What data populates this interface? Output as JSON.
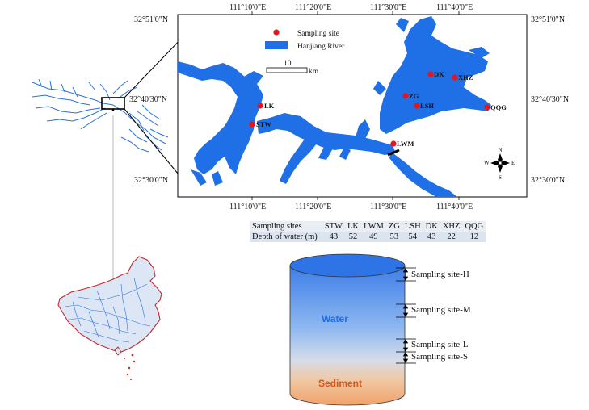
{
  "map": {
    "top_lon_labels": [
      "111°10'0\"E",
      "111°20'0\"E",
      "111°30'0\"E",
      "111°40'0\"E"
    ],
    "bottom_lon_labels": [
      "111°10'0\"E",
      "111°20'0\"E",
      "111°30'0\"E",
      "111°40'0\"E"
    ],
    "left_lat_labels": [
      "32°51'0\"N",
      "32°40'30\"N",
      "32°30'0\"N"
    ],
    "right_lat_labels": [
      "32°51'0\"N",
      "32°40'30\"N",
      "32°30'0\"N"
    ],
    "legend": {
      "site_label": "Sampling site",
      "river_label": "Hanjiang River",
      "site_color": "#e8141b",
      "river_color": "#1f6fe6"
    },
    "scalebar": {
      "value": "10",
      "unit": "km"
    },
    "north_arrow": {
      "n": "N",
      "s": "S",
      "e": "E",
      "w": "W"
    },
    "sites": [
      {
        "name": "LK"
      },
      {
        "name": "STW"
      },
      {
        "name": "LWM"
      },
      {
        "name": "ZG"
      },
      {
        "name": "LSH"
      },
      {
        "name": "DK"
      },
      {
        "name": "XHZ"
      },
      {
        "name": "QQG"
      }
    ]
  },
  "table": {
    "row_labels": [
      "Sampling sites",
      "Depth of water (m)"
    ],
    "sites": [
      "STW",
      "LK",
      "LWM",
      "ZG",
      "LSH",
      "DK",
      "XHZ",
      "QQG"
    ],
    "depths": [
      "43",
      "52",
      "49",
      "53",
      "54",
      "43",
      "22",
      "12"
    ]
  },
  "water_column": {
    "water_label": "Water",
    "sediment_label": "Sediment",
    "water_label_color": "#1f6fe6",
    "sediment_label_color": "#d0561a",
    "levels": [
      "Sampling site-H",
      "Sampling site-M",
      "Sampling site-L",
      "Sampling site-S"
    ]
  },
  "china_outline_color": "#c0282d",
  "river_network_color": "#2a73d8"
}
